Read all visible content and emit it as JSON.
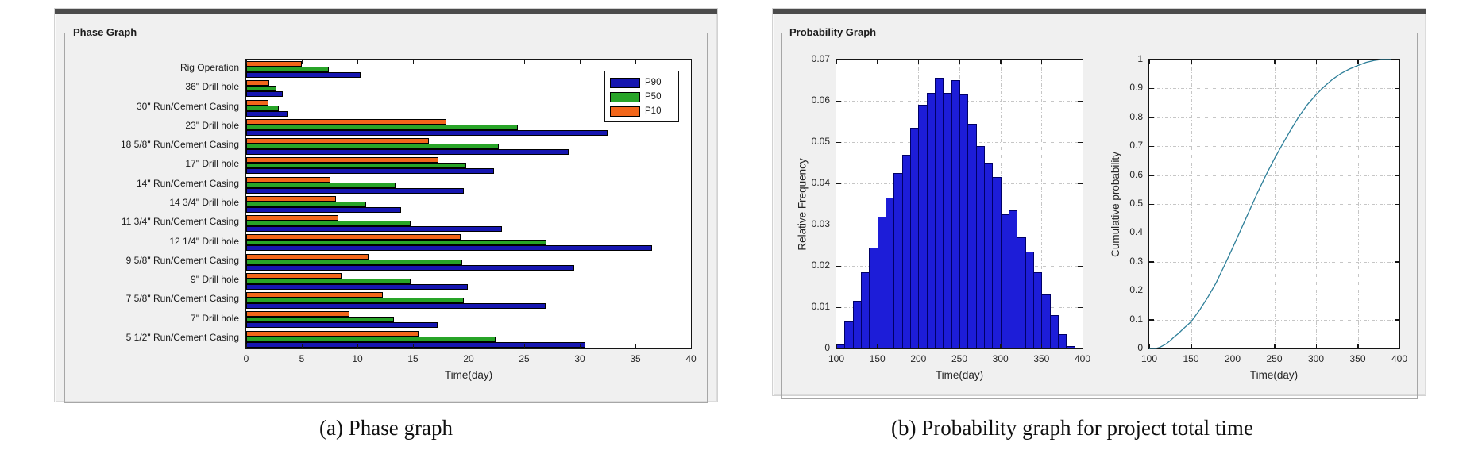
{
  "captions": {
    "a": "(a) Phase graph",
    "b": "(b) Probability graph for project total time"
  },
  "left_panel": {
    "title": "Phase Graph"
  },
  "right_panel": {
    "title": "Probability Graph"
  },
  "colors": {
    "p90_blue": "#1616B0",
    "p50_green": "#28A428",
    "p10_orange": "#F2661A",
    "hist_fill": "#1D1DD8",
    "hist_edge": "#000066",
    "cdf_line": "#2E7F99",
    "panel_bg": "#F0F0F0",
    "axis": "#151515"
  },
  "chart_data": [
    {
      "type": "bar",
      "orientation": "horizontal",
      "title": "Phase Graph",
      "xlabel": "Time(day)",
      "xlim": [
        0,
        40
      ],
      "xticks": [
        0,
        5,
        10,
        15,
        20,
        25,
        30,
        35,
        40
      ],
      "grid": false,
      "legend_position": "northeast",
      "categories": [
        "Rig Operation",
        "36\" Drill hole",
        "30\" Run/Cement Casing",
        "23\" Drill hole",
        "18 5/8\" Run/Cement Casing",
        "17\" Drill hole",
        "14\" Run/Cement Casing",
        "14 3/4\" Drill hole",
        "11 3/4\" Run/Cement Casing",
        "12 1/4\" Drill hole",
        "9 5/8\" Run/Cement Casing",
        "9\" Drill hole",
        "7 5/8\" Run/Cement Casing",
        "7\" Drill hole",
        "5 1/2\" Run/Cement Casing"
      ],
      "series": [
        {
          "name": "P90",
          "color_key": "p90_blue",
          "values": [
            10.3,
            3.3,
            3.7,
            32.5,
            29.0,
            22.3,
            19.6,
            13.9,
            23.0,
            36.5,
            29.5,
            19.9,
            26.9,
            17.2,
            30.5
          ]
        },
        {
          "name": "P50",
          "color_key": "p50_green",
          "values": [
            7.4,
            2.7,
            2.9,
            24.4,
            22.7,
            19.8,
            13.4,
            10.8,
            14.8,
            27.0,
            19.4,
            14.8,
            19.6,
            13.3,
            22.4
          ]
        },
        {
          "name": "P10",
          "color_key": "p10_orange",
          "values": [
            5.0,
            2.1,
            2.0,
            18.0,
            16.4,
            17.3,
            7.6,
            8.1,
            8.3,
            19.3,
            11.0,
            8.6,
            12.3,
            9.3,
            15.5
          ]
        }
      ]
    },
    {
      "type": "bar",
      "subtype": "histogram",
      "title": "",
      "xlabel": "Time(day)",
      "ylabel": "Relative Frequency",
      "xlim": [
        100,
        400
      ],
      "ylim": [
        0,
        0.07
      ],
      "xticks": [
        100,
        150,
        200,
        250,
        300,
        350,
        400
      ],
      "yticks": [
        0,
        0.01,
        0.02,
        0.03,
        0.04,
        0.05,
        0.06,
        0.07
      ],
      "yticklabels": [
        "0",
        "0.01",
        "0.02",
        "0.03",
        "0.04",
        "0.05",
        "0.06",
        "0.07"
      ],
      "grid": true,
      "bin_start": 100,
      "bin_width": 10,
      "values": [
        0.001,
        0.0065,
        0.0115,
        0.0185,
        0.0245,
        0.032,
        0.0365,
        0.0425,
        0.047,
        0.0535,
        0.059,
        0.062,
        0.0655,
        0.062,
        0.065,
        0.0615,
        0.0545,
        0.049,
        0.045,
        0.0415,
        0.0325,
        0.0335,
        0.027,
        0.0235,
        0.0185,
        0.013,
        0.008,
        0.0035,
        0.0005
      ]
    },
    {
      "type": "line",
      "title": "",
      "xlabel": "Time(day)",
      "ylabel": "Cumulative probability",
      "xlim": [
        100,
        400
      ],
      "ylim": [
        0,
        1
      ],
      "xticks": [
        100,
        150,
        200,
        250,
        300,
        350,
        400
      ],
      "yticks": [
        0,
        0.1,
        0.2,
        0.3,
        0.4,
        0.5,
        0.6,
        0.7,
        0.8,
        0.9,
        1
      ],
      "yticklabels": [
        "0",
        "0.1",
        "0.2",
        "0.3",
        "0.4",
        "0.5",
        "0.6",
        "0.7",
        "0.8",
        "0.9",
        "1"
      ],
      "grid": true,
      "x": [
        100,
        108,
        112,
        120,
        125,
        130,
        135,
        140,
        145,
        150,
        160,
        170,
        180,
        190,
        200,
        210,
        220,
        230,
        240,
        250,
        260,
        270,
        280,
        290,
        300,
        310,
        320,
        330,
        340,
        350,
        360,
        370,
        378,
        390
      ],
      "y": [
        0,
        0,
        0.003,
        0.015,
        0.027,
        0.04,
        0.052,
        0.066,
        0.079,
        0.092,
        0.131,
        0.176,
        0.226,
        0.286,
        0.348,
        0.412,
        0.476,
        0.54,
        0.6,
        0.656,
        0.708,
        0.758,
        0.805,
        0.845,
        0.878,
        0.907,
        0.932,
        0.952,
        0.967,
        0.979,
        0.99,
        0.997,
        1.0,
        1.0
      ]
    }
  ]
}
